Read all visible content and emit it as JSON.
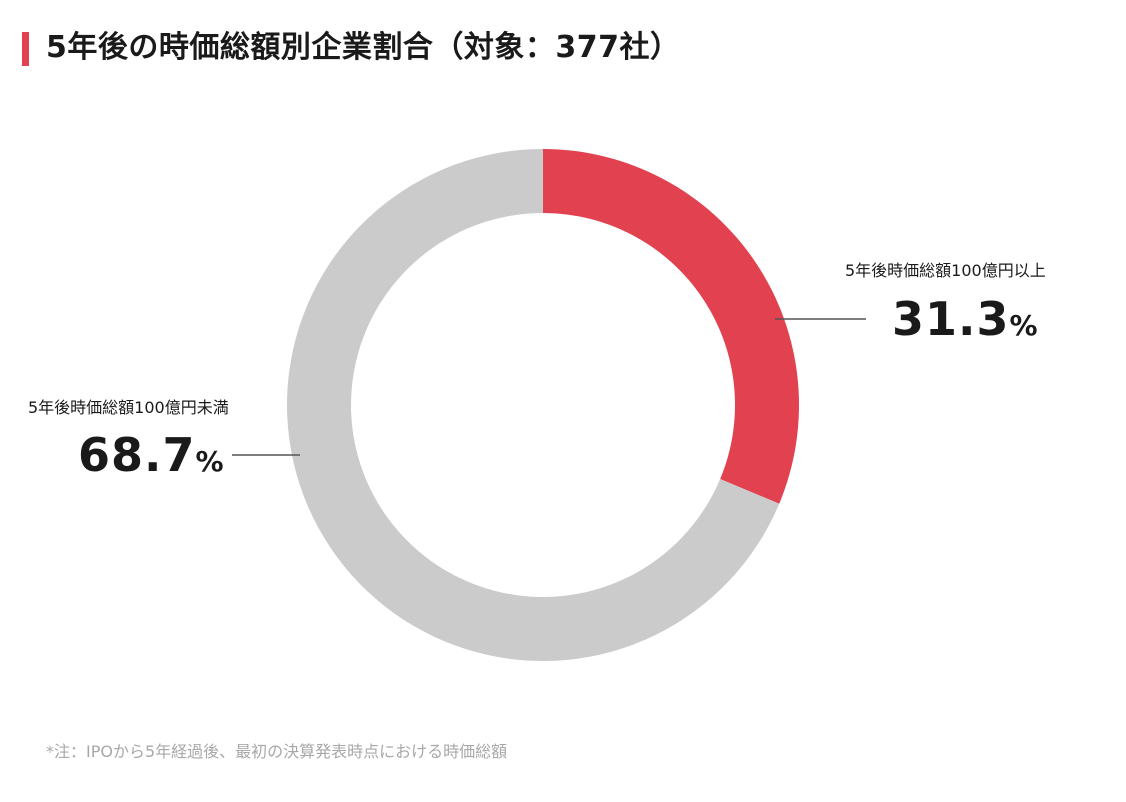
{
  "title": "5年後の時価総額別企業割合（対象：377社）",
  "note": "*注：IPOから5年経過後、最初の決算発表時点における時価総額",
  "colors": {
    "accent": "#e2414f",
    "rest": "#cbcbcb"
  },
  "chart_data": {
    "type": "pie",
    "style": "donut",
    "start": "12 o'clock, clockwise",
    "categories": [
      "5年後時価総額100億円以上",
      "5年後時価総額100億円未満"
    ],
    "values": [
      31.3,
      68.7
    ],
    "value_labels": [
      "31.3",
      "68.7"
    ],
    "unit": "%",
    "colors": [
      "#e2414f",
      "#cbcbcb"
    ],
    "legend": "none"
  }
}
